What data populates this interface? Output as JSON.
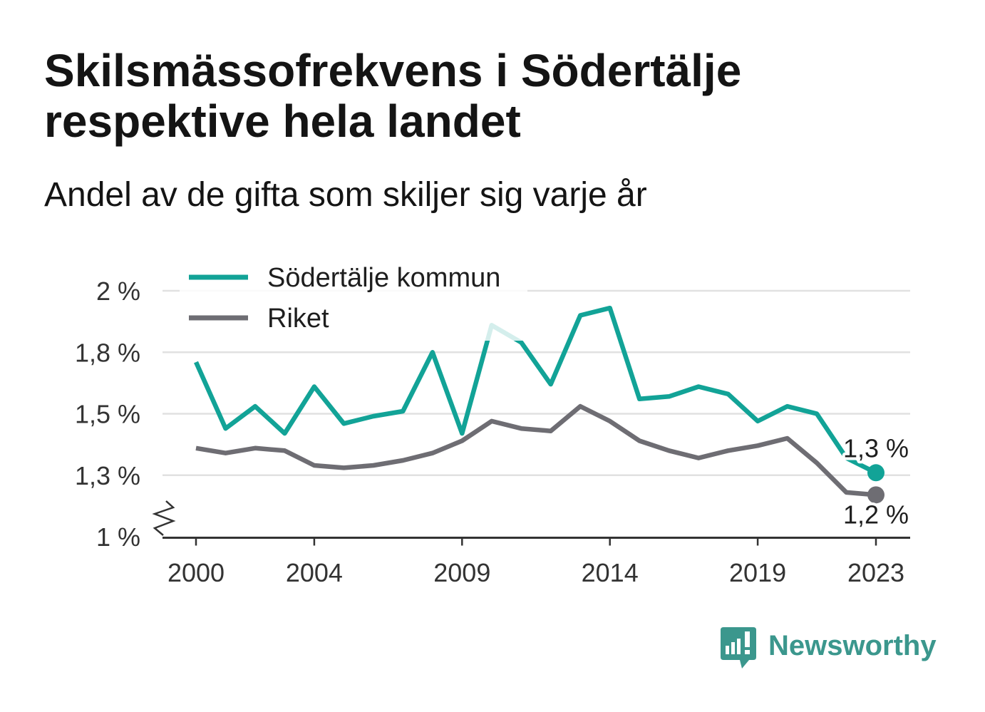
{
  "chart_data": {
    "type": "line",
    "title": "Skilsmässofrekvens i Södertälje respektive hela landet",
    "subtitle": "Andel av de gifta som skiljer sig varje år",
    "x": [
      2000,
      2001,
      2002,
      2003,
      2004,
      2005,
      2006,
      2007,
      2008,
      2009,
      2010,
      2011,
      2012,
      2013,
      2014,
      2015,
      2016,
      2017,
      2018,
      2019,
      2020,
      2021,
      2022,
      2023
    ],
    "x_ticks": [
      2000,
      2004,
      2009,
      2014,
      2019,
      2023
    ],
    "y_ticks": [
      {
        "value": 2,
        "label": "2 %"
      },
      {
        "value": 1.75,
        "label": "1,8 %"
      },
      {
        "value": 1.5,
        "label": "1,5 %"
      },
      {
        "value": 1.25,
        "label": "1,3 %"
      },
      {
        "value": 1,
        "label": "1 %"
      }
    ],
    "ylim": [
      1,
      2
    ],
    "y_axis_break": true,
    "grid": true,
    "legend_position": "top-left",
    "series": [
      {
        "name": "Södertälje kommun",
        "color": "#12a397",
        "values": [
          1.71,
          1.44,
          1.53,
          1.42,
          1.61,
          1.46,
          1.49,
          1.51,
          1.75,
          1.42,
          1.86,
          1.79,
          1.62,
          1.9,
          1.93,
          1.56,
          1.57,
          1.61,
          1.58,
          1.47,
          1.53,
          1.5,
          1.32,
          1.26
        ],
        "end_label": "1,3 %"
      },
      {
        "name": "Riket",
        "color": "#6e6d73",
        "values": [
          1.36,
          1.34,
          1.36,
          1.35,
          1.29,
          1.28,
          1.29,
          1.31,
          1.34,
          1.39,
          1.47,
          1.44,
          1.43,
          1.53,
          1.47,
          1.39,
          1.35,
          1.32,
          1.35,
          1.37,
          1.4,
          1.3,
          1.18,
          1.17
        ],
        "end_label": "1,2 %"
      }
    ]
  },
  "colors": {
    "text": "#141414",
    "axis_text": "#333333",
    "gridline": "#e1e1e1",
    "baseline": "#333333"
  },
  "logo": {
    "text": "Newsworthy",
    "icon": "newsworthy-bubble-icon",
    "color": "#3b978d"
  }
}
